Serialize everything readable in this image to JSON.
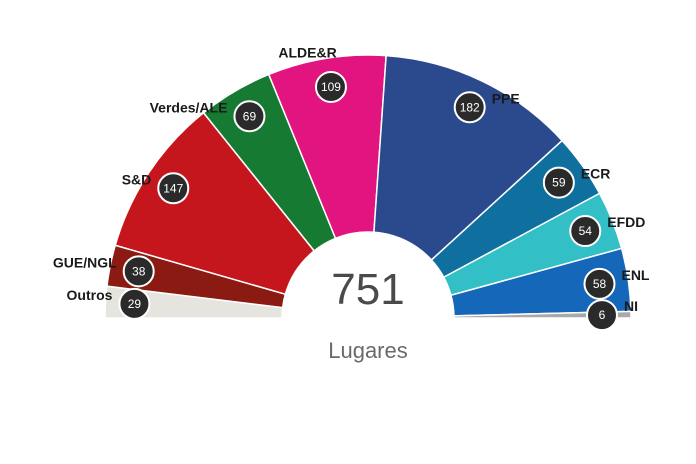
{
  "chart_data": {
    "type": "pie",
    "variant": "parliament-hemicycle",
    "total": 751,
    "total_label": "751",
    "unit_label": "Lugares",
    "segments": [
      {
        "name": "Outros",
        "value": 29,
        "color": "#e6e4df"
      },
      {
        "name": "GUE/NGL",
        "value": 38,
        "color": "#8b1a13"
      },
      {
        "name": "S&D",
        "value": 147,
        "color": "#c4161c"
      },
      {
        "name": "Verdes/ALE",
        "value": 69,
        "color": "#177a33"
      },
      {
        "name": "ALDE&R",
        "value": 109,
        "color": "#e2147f"
      },
      {
        "name": "PPE",
        "value": 182,
        "color": "#2b4a8e"
      },
      {
        "name": "ECR",
        "value": 59,
        "color": "#0f6f9e"
      },
      {
        "name": "EFDD",
        "value": 54,
        "color": "#33bfc6"
      },
      {
        "name": "ENL",
        "value": 58,
        "color": "#1467b9"
      },
      {
        "name": "NI",
        "value": 6,
        "color": "#a9a9a9"
      }
    ]
  }
}
